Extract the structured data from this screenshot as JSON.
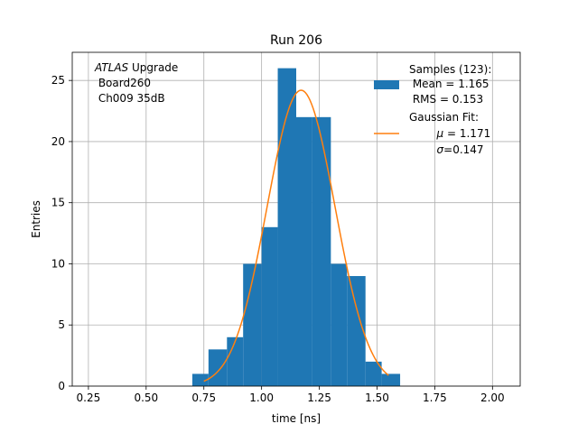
{
  "chart_data": {
    "type": "bar",
    "title": "Run 206",
    "xlabel": "time [ns]",
    "ylabel": "Entries",
    "xlim": [
      0.18,
      2.12
    ],
    "ylim": [
      0,
      27.3
    ],
    "xticks": [
      0.25,
      0.5,
      0.75,
      1.0,
      1.25,
      1.5,
      1.75,
      2.0
    ],
    "xtick_labels": [
      "0.25",
      "0.50",
      "0.75",
      "1.00",
      "1.25",
      "1.50",
      "1.75",
      "2.00"
    ],
    "yticks": [
      0,
      5,
      10,
      15,
      20,
      25
    ],
    "ytick_labels": [
      "0",
      "5",
      "10",
      "15",
      "20",
      "25"
    ],
    "grid": true,
    "legend_position": "top-right",
    "annotation": {
      "line1_italic": "ATLAS",
      "line1_rest": " Upgrade",
      "line2": " Board260",
      "line3": " Ch009 35dB"
    },
    "histogram": {
      "name": "Samples (123):",
      "color": "#1f77b4",
      "bin_edges": [
        0.7,
        0.77,
        0.85,
        0.92,
        1.0,
        1.07,
        1.15,
        1.22,
        1.3,
        1.37,
        1.45,
        1.52,
        1.6
      ],
      "counts": [
        1,
        3,
        4,
        10,
        13,
        26,
        22,
        22,
        10,
        9,
        2,
        1
      ]
    },
    "fit": {
      "name": "Gaussian Fit:",
      "color": "#ff7f0e",
      "mu": 1.171,
      "sigma": 0.147,
      "amplitude": 24.2,
      "x_range": [
        0.75,
        1.55
      ]
    },
    "legend": {
      "hist_line1": "Samples (123):",
      "hist_line2": " Mean = 1.165",
      "hist_line3": " RMS = 0.153",
      "fit_line1": "Gaussian Fit:",
      "fit_mu_symbol": "μ",
      "fit_mu_rest": " = 1.171",
      "fit_sigma_symbol": "σ",
      "fit_sigma_rest": "=0.147"
    }
  }
}
